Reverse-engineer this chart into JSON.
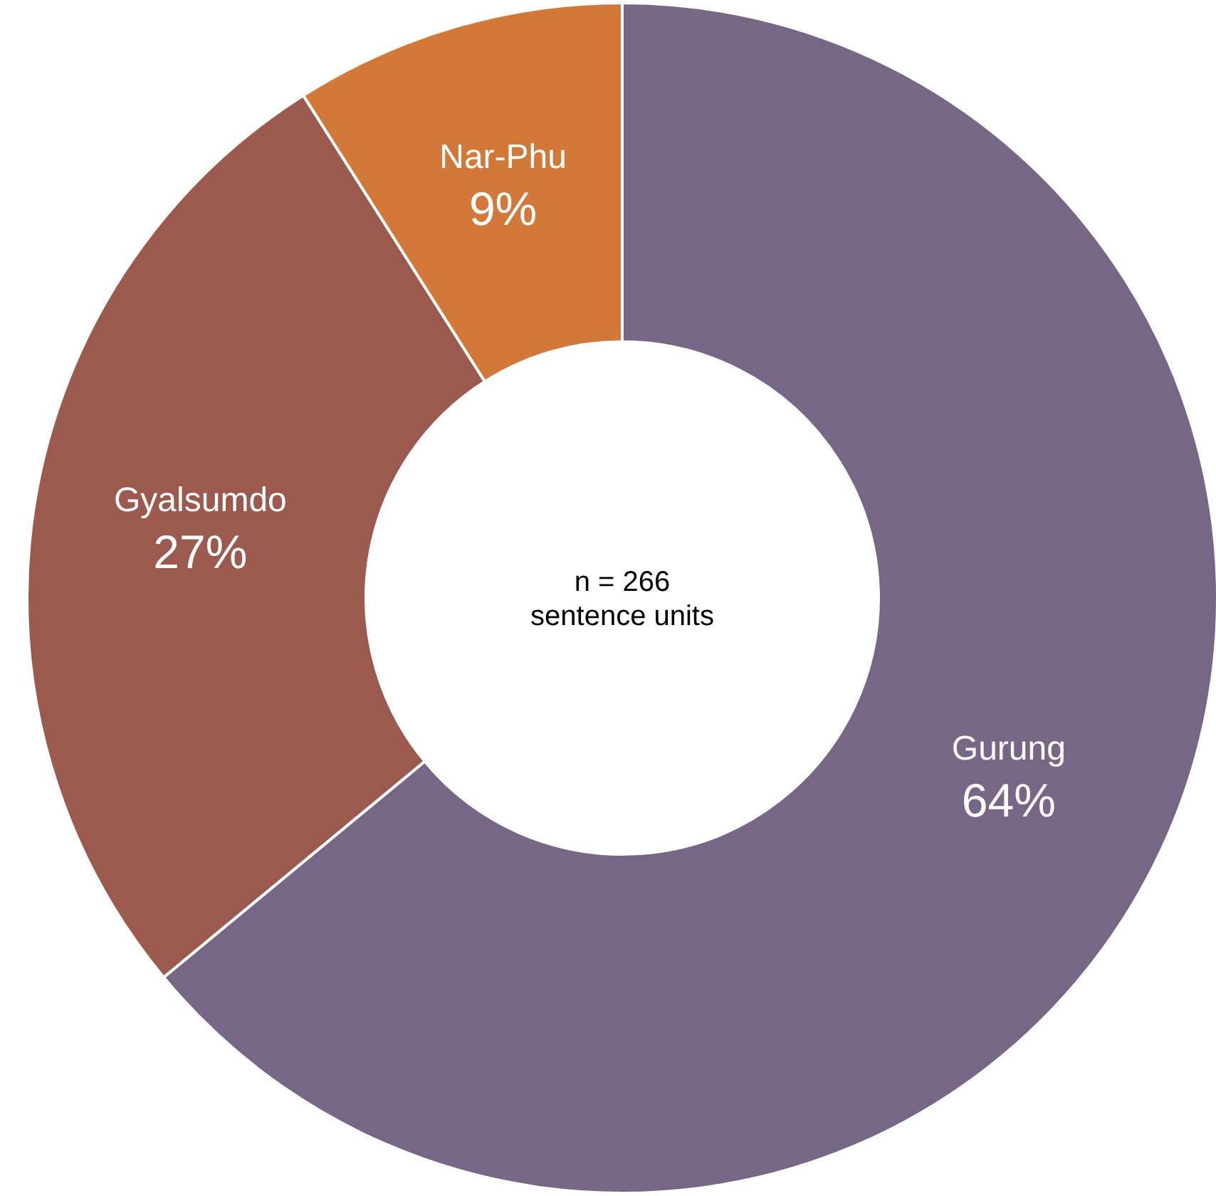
{
  "chart_data": {
    "type": "donut",
    "categories": [
      "Gurung",
      "Gyalsumdo",
      "Nar-Phu"
    ],
    "values": [
      64,
      27,
      9
    ],
    "colors": [
      "#786687",
      "#9c5a4e",
      "#d2793a"
    ],
    "value_labels": [
      "64%",
      "27%",
      "9%"
    ],
    "annotations": [
      "n = 266",
      "sentence units"
    ]
  }
}
